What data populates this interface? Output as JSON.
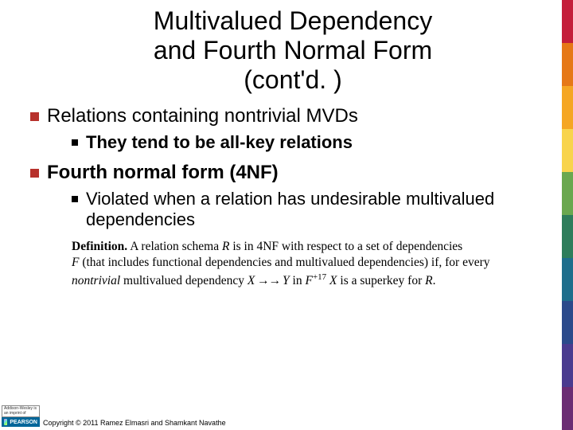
{
  "title_line1": "Multivalued Dependency",
  "title_line2": "and Fourth Normal Form",
  "title_line3": "(cont'd. )",
  "bullet1": "Relations containing nontrivial MVDs",
  "bullet1_sub": "They tend to be all-key relations",
  "bullet2": "Fourth normal form (4NF)",
  "bullet2_sub": "Violated when a relation has undesirable multivalued dependencies",
  "definition_label": "Definition.",
  "definition_text1": " A relation schema ",
  "definition_R": "R",
  "definition_text2": " is in 4NF with respect to a set of dependencies ",
  "definition_F": "F",
  "definition_text3": " (that includes functional dependencies and multivalued dependencies) if, for every ",
  "definition_nontrivial": "nontrivial",
  "definition_text4": " multivalued dependency ",
  "definition_X": "X",
  "definition_arrow": " →→ ",
  "definition_Y": "Y",
  "definition_text5": " in ",
  "definition_Fplus": "F",
  "definition_exp": "+17",
  "definition_text6": " ",
  "definition_X2": "X",
  "definition_text7": " is a superkey for ",
  "definition_R2": "R",
  "definition_period": ".",
  "copyright": "Copyright © 2011 Ramez Elmasri and Shamkant Navathe",
  "logo_top": "Addison-Wesley is an imprint of",
  "logo_brand": "PEARSON",
  "color_bar": [
    "#c41e3a",
    "#e67817",
    "#f5a623",
    "#f8d44c",
    "#6aa84f",
    "#2e7d5b",
    "#1e6e8c",
    "#2b4a8b",
    "#4a3b8f",
    "#6b2d73"
  ]
}
